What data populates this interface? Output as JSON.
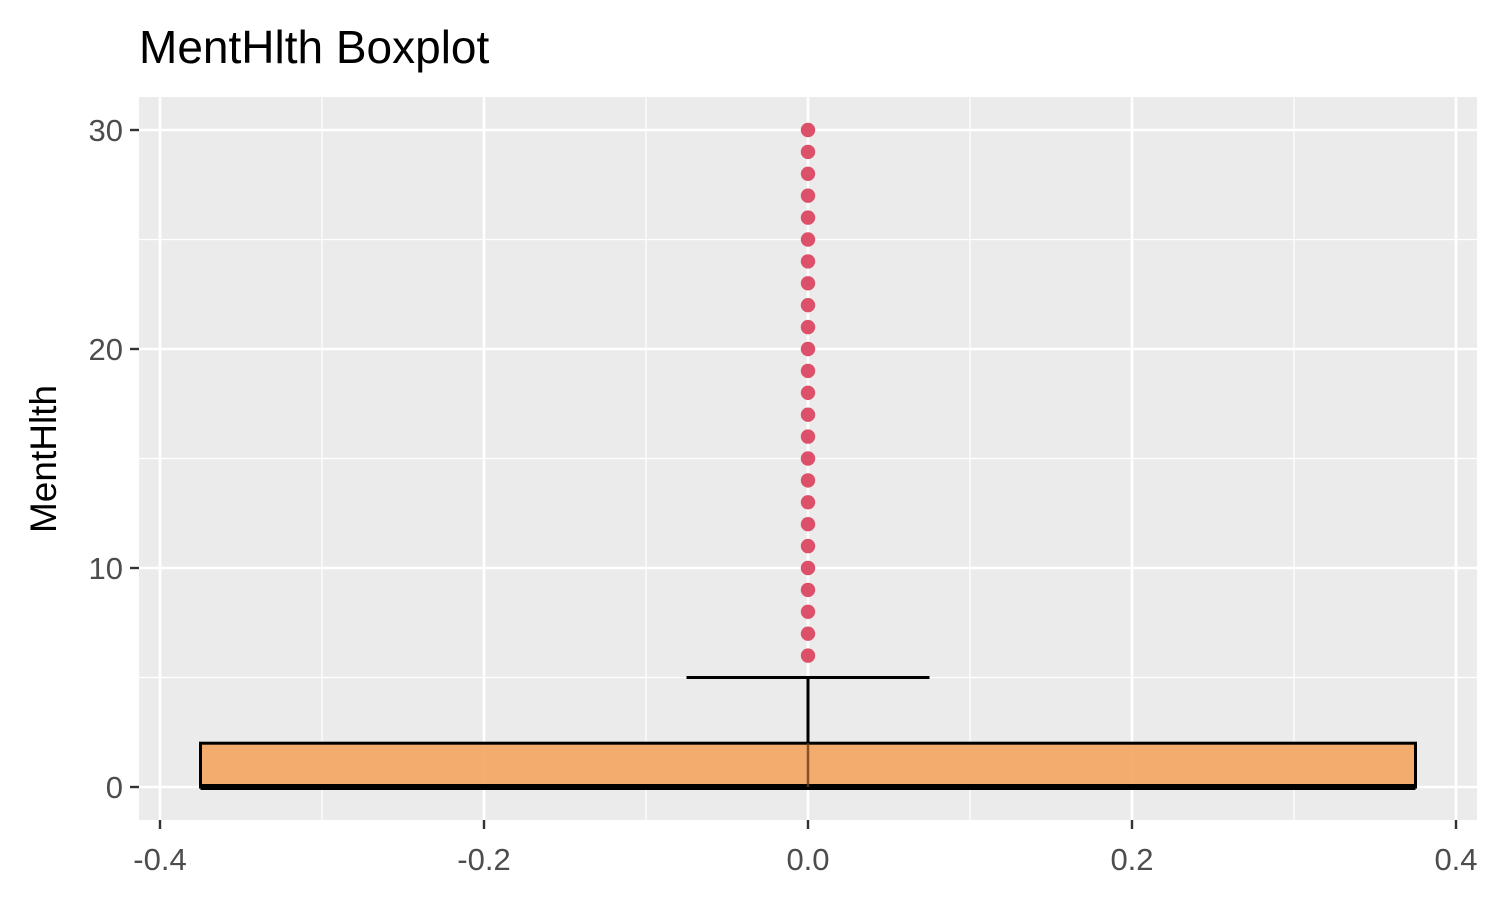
{
  "chart_data": {
    "type": "boxplot",
    "title": "MentHlth Boxplot",
    "xlabel": "",
    "ylabel": "MentHlth",
    "xlim": [
      -0.4,
      0.4
    ],
    "ylim": [
      0,
      30
    ],
    "x_ticks": [
      -0.4,
      -0.2,
      0.0,
      0.2,
      0.4
    ],
    "x_tick_labels": [
      "-0.4",
      "-0.2",
      "0.0",
      "0.2",
      "0.4"
    ],
    "y_ticks": [
      0,
      10,
      20,
      30
    ],
    "y_tick_labels": [
      "0",
      "10",
      "20",
      "30"
    ],
    "grid": true,
    "box": {
      "x": 0.0,
      "width": 0.75,
      "min": 0,
      "q1": 0,
      "median": 0,
      "q3": 2,
      "whisker_high": 5,
      "fill": "#F4A460",
      "outline": "#000000"
    },
    "outliers": {
      "x": 0.0,
      "values": [
        6,
        7,
        8,
        9,
        10,
        11,
        12,
        13,
        14,
        15,
        16,
        17,
        18,
        19,
        20,
        21,
        22,
        23,
        24,
        25,
        26,
        27,
        28,
        29,
        30
      ],
      "color": "#DC5069"
    },
    "panel_background": "#EBEBEB"
  }
}
